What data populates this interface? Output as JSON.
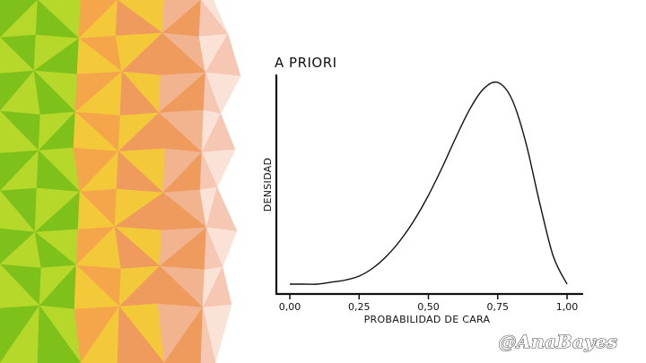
{
  "colors": {
    "background": "#ffffff",
    "ink": "#111111",
    "decor_palette": [
      "#7fc11b",
      "#b6d82a",
      "#e8e62a",
      "#f3c93a",
      "#f6a64a",
      "#ef9b5e",
      "#f2b48f",
      "#f6c7b3",
      "#fbe2d6"
    ]
  },
  "watermark": "@AnaBayes",
  "chart_data": {
    "type": "line",
    "title": "A PRIORI",
    "xlabel": "PROBABILIDAD DE CARA",
    "ylabel": "DENSIDAD",
    "xlim": [
      0,
      1
    ],
    "ylim": [
      0,
      1.05
    ],
    "xticks": [
      "0,00",
      "0,25",
      "0,50",
      "0,75",
      "1,00"
    ],
    "xtick_values": [
      0,
      0.25,
      0.5,
      0.75,
      1.0
    ],
    "grid": false,
    "series": [
      {
        "x": [
          0.0,
          0.05,
          0.1,
          0.15,
          0.2,
          0.25,
          0.3,
          0.35,
          0.4,
          0.45,
          0.5,
          0.55,
          0.6,
          0.65,
          0.7,
          0.75,
          0.8,
          0.85,
          0.9,
          0.95,
          1.0
        ],
        "values": [
          0.0,
          0.0,
          0.0,
          0.01,
          0.02,
          0.04,
          0.08,
          0.14,
          0.22,
          0.32,
          0.44,
          0.58,
          0.73,
          0.87,
          0.97,
          1.0,
          0.92,
          0.71,
          0.41,
          0.14,
          0.0
        ]
      }
    ]
  }
}
